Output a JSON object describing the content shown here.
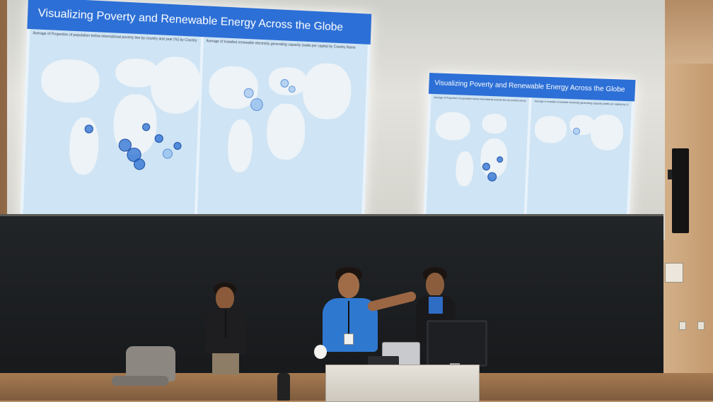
{
  "scene": {
    "screens": [
      {
        "title": "Visualizing Poverty and Renewable Energy Across the Globe",
        "map_left_caption": "Average of Proportion of population below international poverty line by country and year (%) by Country Name",
        "map_right_caption": "Average of Installed renewable electricity-generating capacity (watts per capita) by Country Name"
      },
      {
        "title": "Visualizing Poverty and Renewable Energy Across the Globe",
        "map_left_caption": "Average of Proportion of population below international poverty line by country and year (%) by Country Name",
        "map_right_caption": "Average of Installed renewable electricity-generating capacity (watts per capita) by Country Name"
      }
    ],
    "colors": {
      "banner": "#2c6fd6",
      "bubble": "#286ed2",
      "map_water": "#cfe4f4",
      "shirt": "#2f78d0",
      "blackboard": "#1c1e20"
    }
  }
}
